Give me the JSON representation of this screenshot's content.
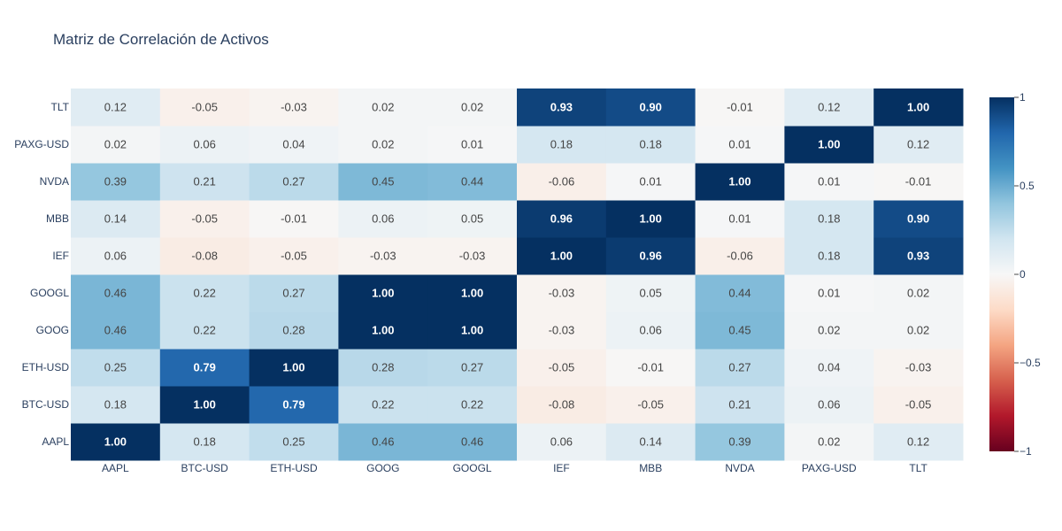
{
  "chart_data": {
    "type": "heatmap",
    "title": "Matriz de Correlación de Activos",
    "xlabel": "",
    "ylabel": "",
    "x_categories": [
      "AAPL",
      "BTC-USD",
      "ETH-USD",
      "GOOG",
      "GOOGL",
      "IEF",
      "MBB",
      "NVDA",
      "PAXG-USD",
      "TLT"
    ],
    "y_categories": [
      "AAPL",
      "BTC-USD",
      "ETH-USD",
      "GOOG",
      "GOOGL",
      "IEF",
      "MBB",
      "NVDA",
      "PAXG-USD",
      "TLT"
    ],
    "z": [
      [
        1.0,
        0.18,
        0.25,
        0.46,
        0.46,
        0.06,
        0.14,
        0.39,
        0.02,
        0.12
      ],
      [
        0.18,
        1.0,
        0.79,
        0.22,
        0.22,
        -0.08,
        -0.05,
        0.21,
        0.06,
        -0.05
      ],
      [
        0.25,
        0.79,
        1.0,
        0.28,
        0.27,
        -0.05,
        -0.01,
        0.27,
        0.04,
        -0.03
      ],
      [
        0.46,
        0.22,
        0.28,
        1.0,
        1.0,
        -0.03,
        0.06,
        0.45,
        0.02,
        0.02
      ],
      [
        0.46,
        0.22,
        0.27,
        1.0,
        1.0,
        -0.03,
        0.05,
        0.44,
        0.01,
        0.02
      ],
      [
        0.06,
        -0.08,
        -0.05,
        -0.03,
        -0.03,
        1.0,
        0.96,
        -0.06,
        0.18,
        0.93
      ],
      [
        0.14,
        -0.05,
        -0.01,
        0.06,
        0.05,
        0.96,
        1.0,
        0.01,
        0.18,
        0.9
      ],
      [
        0.39,
        0.21,
        0.27,
        0.45,
        0.44,
        -0.06,
        0.01,
        1.0,
        0.01,
        -0.01
      ],
      [
        0.02,
        0.06,
        0.04,
        0.02,
        0.01,
        0.18,
        0.18,
        0.01,
        1.0,
        0.12
      ],
      [
        0.12,
        -0.05,
        -0.03,
        0.02,
        0.02,
        0.93,
        0.9,
        -0.01,
        0.12,
        1.0
      ]
    ],
    "zrange": [
      -1,
      1
    ],
    "colorscale": "RdBu",
    "colorbar": {
      "ticks": [
        1,
        0.5,
        0,
        -0.5,
        -1
      ],
      "tick_labels": [
        "1",
        "0.5",
        "0",
        "−0.5",
        "−1"
      ]
    },
    "text_format": "0.00",
    "grid": false
  }
}
